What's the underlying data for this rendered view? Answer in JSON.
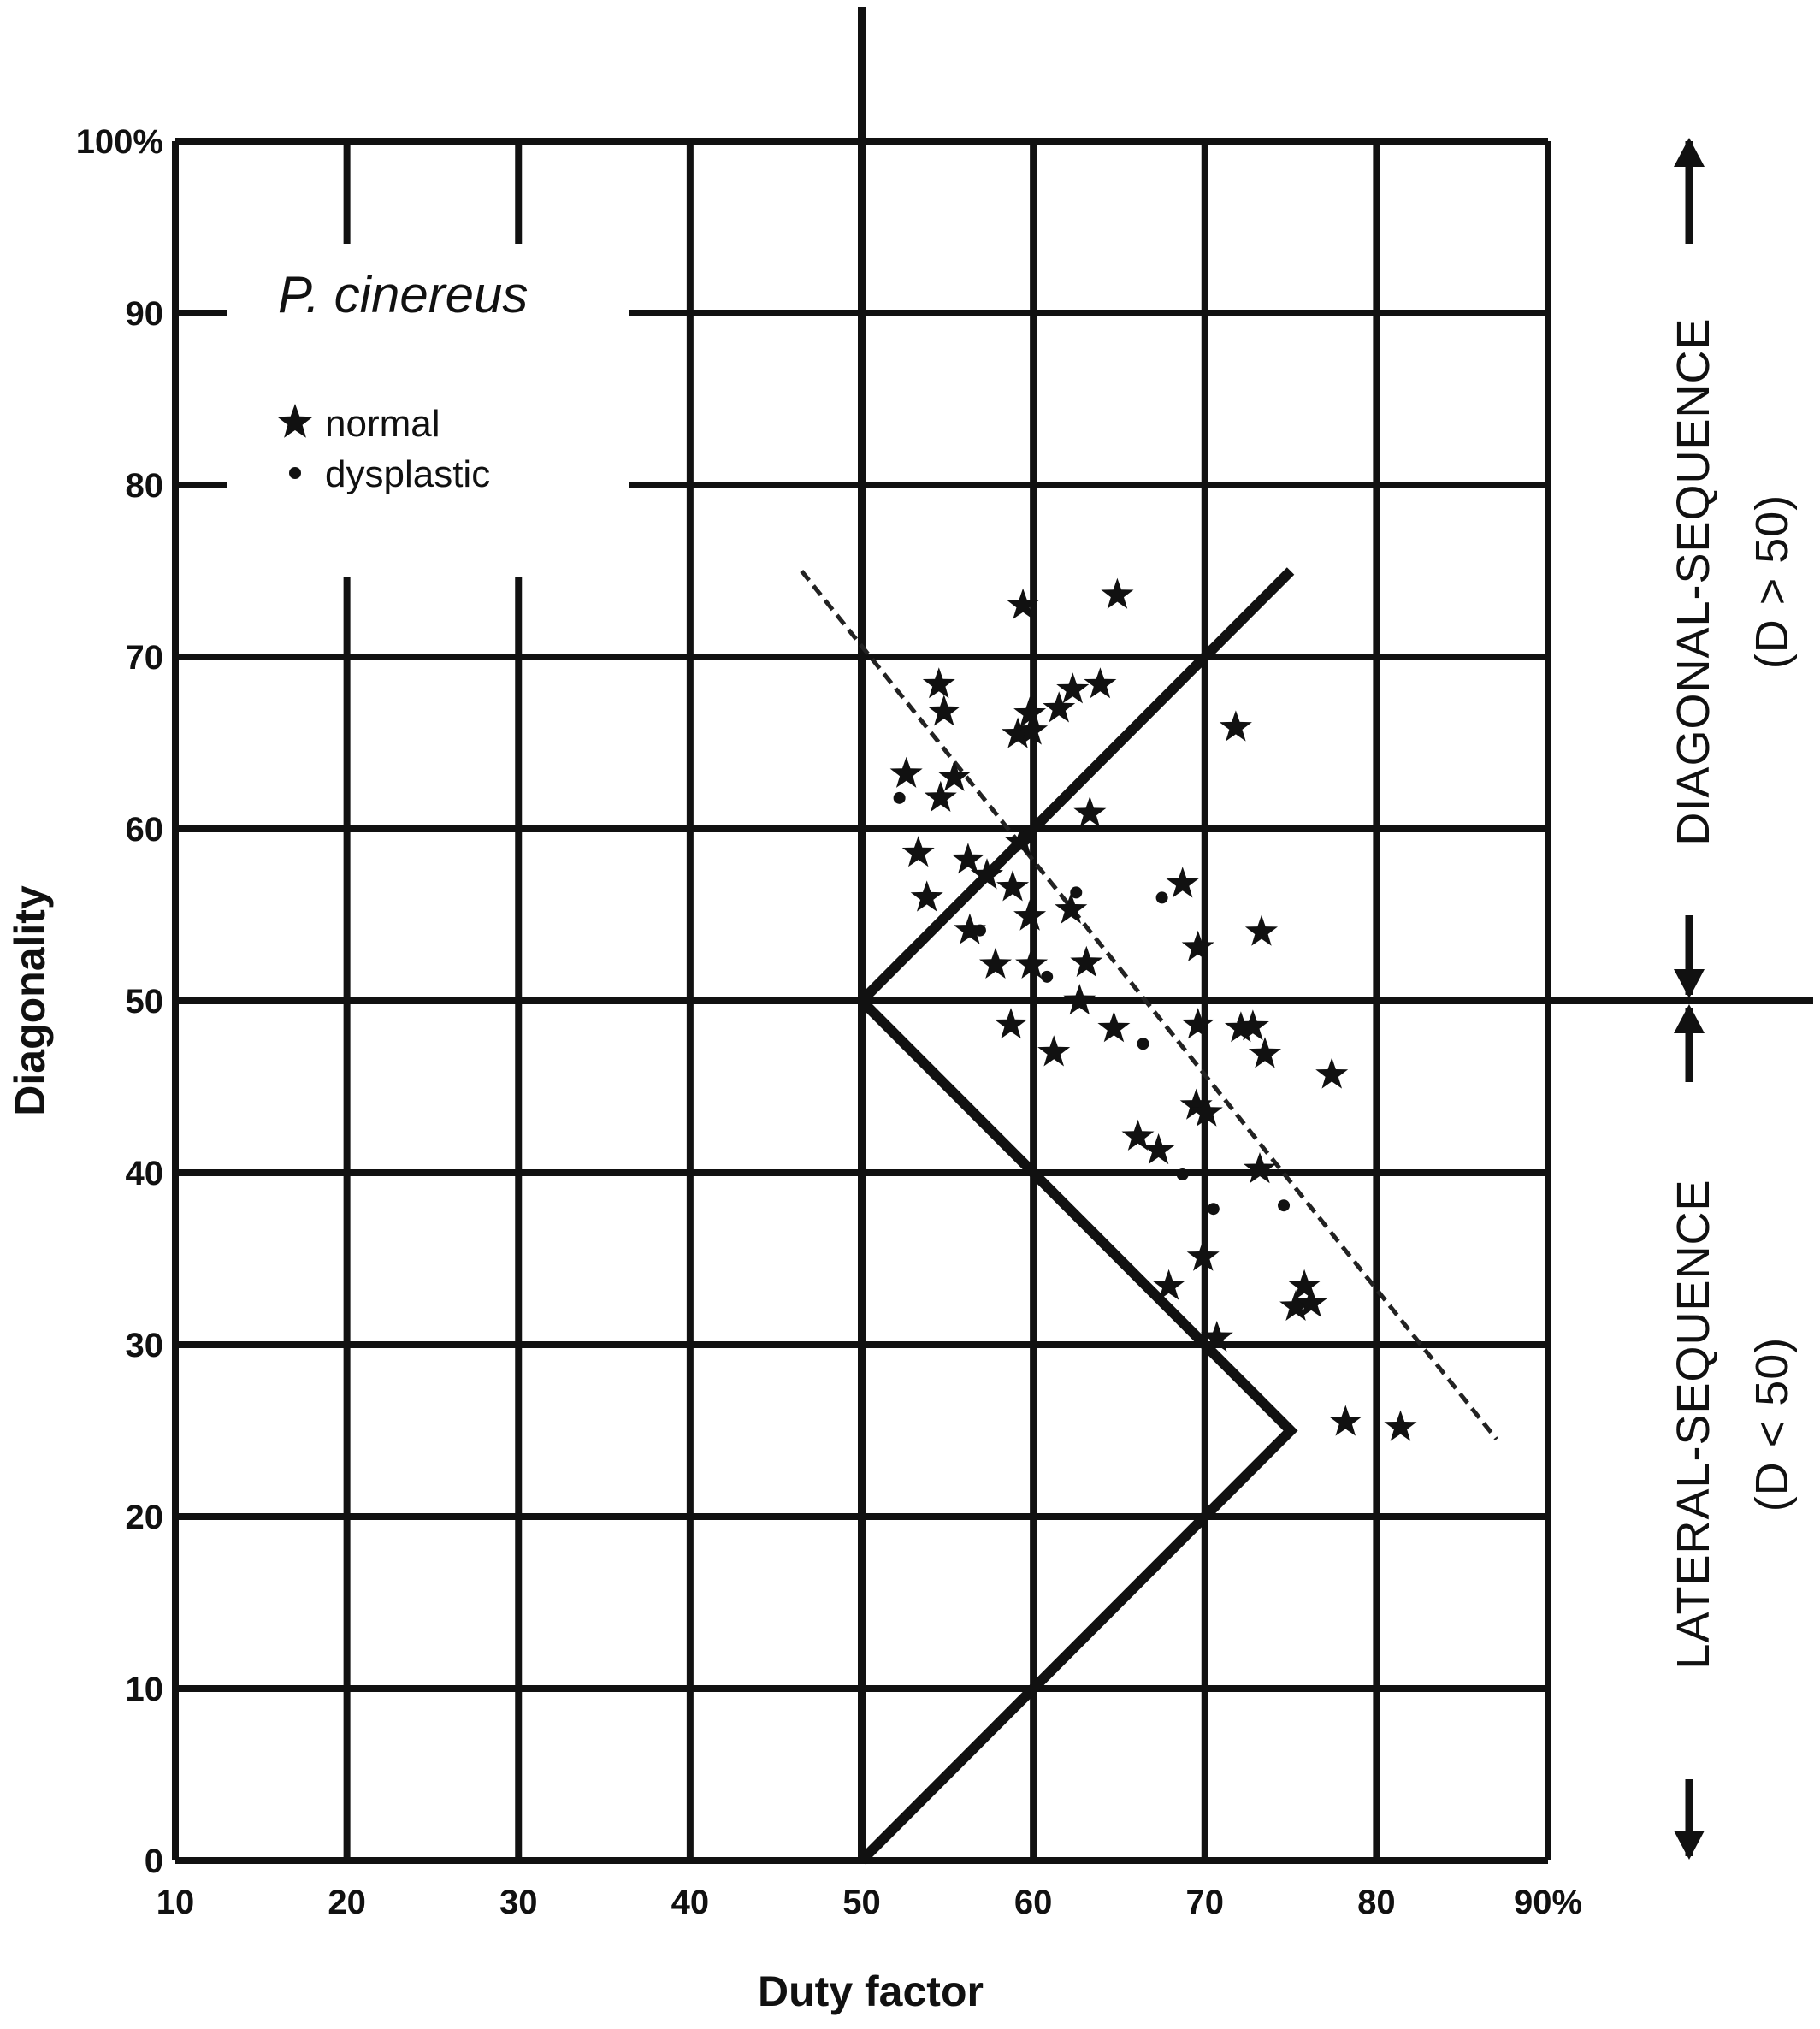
{
  "chart_data": {
    "type": "scatter",
    "xlabel": "Duty factor",
    "ylabel": "Diagonality",
    "xlim": [
      10,
      90
    ],
    "ylim": [
      0,
      100
    ],
    "x_ticks": [
      "10",
      "20",
      "30",
      "40",
      "50",
      "60",
      "70",
      "80",
      "90%"
    ],
    "y_ticks": [
      "0",
      "10",
      "20",
      "30",
      "40",
      "50",
      "60",
      "70",
      "80",
      "90",
      "100%"
    ],
    "grid": true,
    "legend": {
      "title": "P. cinereus",
      "placement": "top-left",
      "entries": [
        {
          "label": "normal",
          "marker": "star"
        },
        {
          "label": "dysplastic",
          "marker": "dot"
        }
      ]
    },
    "side_labels": {
      "upper": "DIAGONAL-SEQUENCE",
      "upper_sub": "(D > 50)",
      "lower": "LATERAL-SEQUENCE",
      "lower_sub": "(D < 50)"
    },
    "reference_lines": {
      "zigzag": [
        [
          75,
          75
        ],
        [
          50,
          50
        ],
        [
          75,
          25
        ],
        [
          50,
          0
        ]
      ],
      "dashed_regression": [
        [
          46.5,
          75
        ],
        [
          87,
          24.5
        ]
      ],
      "vertical_x": 50,
      "horizontal_y": 50
    },
    "series": [
      {
        "name": "normal",
        "marker": "star",
        "points": [
          [
            59.4,
            73
          ],
          [
            64.9,
            73.6
          ],
          [
            54.5,
            68.4
          ],
          [
            54.8,
            66.8
          ],
          [
            59.8,
            66.7
          ],
          [
            61.5,
            67
          ],
          [
            62.3,
            68.1
          ],
          [
            63.9,
            68.4
          ],
          [
            59.1,
            65.5
          ],
          [
            59.9,
            65.7
          ],
          [
            71.8,
            65.9
          ],
          [
            52.6,
            63.2
          ],
          [
            55.4,
            63
          ],
          [
            54.6,
            61.8
          ],
          [
            63.3,
            60.9
          ],
          [
            59.3,
            59.2
          ],
          [
            53.3,
            58.6
          ],
          [
            56.2,
            58.2
          ],
          [
            57.3,
            57.3
          ],
          [
            58.8,
            56.6
          ],
          [
            53.8,
            56
          ],
          [
            68.7,
            56.8
          ],
          [
            62.2,
            55.3
          ],
          [
            59.8,
            54.9
          ],
          [
            56.3,
            54.1
          ],
          [
            73.3,
            54
          ],
          [
            69.6,
            53.1
          ],
          [
            57.8,
            52.1
          ],
          [
            59.9,
            52.1
          ],
          [
            63.1,
            52.2
          ],
          [
            62.7,
            50
          ],
          [
            58.7,
            48.6
          ],
          [
            64.7,
            48.4
          ],
          [
            69.6,
            48.6
          ],
          [
            72.1,
            48.4
          ],
          [
            72.8,
            48.5
          ],
          [
            61.2,
            47
          ],
          [
            73.5,
            46.9
          ],
          [
            77.4,
            45.7
          ],
          [
            69.5,
            43.9
          ],
          [
            70.1,
            43.5
          ],
          [
            66.1,
            42.1
          ],
          [
            67.3,
            41.3
          ],
          [
            73.2,
            40.2
          ],
          [
            69.9,
            35.1
          ],
          [
            67.9,
            33.4
          ],
          [
            75.8,
            33.4
          ],
          [
            75.3,
            32.2
          ],
          [
            76.2,
            32.4
          ],
          [
            70.7,
            30.4
          ],
          [
            78.2,
            25.5
          ],
          [
            81.4,
            25.2
          ]
        ]
      },
      {
        "name": "dysplastic",
        "marker": "dot",
        "points": [
          [
            52.2,
            61.8
          ],
          [
            56.9,
            54.1
          ],
          [
            62.5,
            56.3
          ],
          [
            60.8,
            51.4
          ],
          [
            67.5,
            56
          ],
          [
            66.4,
            47.5
          ],
          [
            68.7,
            39.9
          ],
          [
            70.5,
            37.9
          ],
          [
            74.6,
            38.1
          ]
        ]
      }
    ]
  }
}
